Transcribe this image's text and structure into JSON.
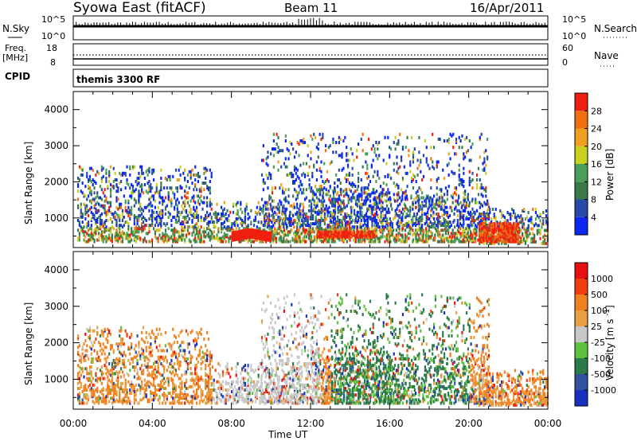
{
  "header": {
    "station": "Syowa East (fitACF)",
    "beam": "Beam 11",
    "date": "16/Apr/2011"
  },
  "top_panels": {
    "nsky_label": "N.Sky",
    "nsky_top": "10^5",
    "nsky_bottom": "10^0",
    "nsearch_label": "N.Search",
    "nsearch_top": "10^5",
    "nsearch_bottom": "10^0",
    "freq_label_1": "Freq.",
    "freq_label_2": "[MHz]",
    "freq_top": "18",
    "freq_bottom": "8",
    "nave_label": "Nave",
    "nave_top": "60",
    "nave_bottom": "0",
    "cpid_label": "CPID",
    "cpid_value": "themis 3300 RF"
  },
  "chart_data": [
    {
      "type": "heatmap",
      "name": "power",
      "ylabel": "Slant Range [km]",
      "ylim": [
        180,
        4500
      ],
      "yticks": [
        "1000",
        "2000",
        "3000",
        "4000"
      ],
      "xlim": [
        0,
        24
      ],
      "xticks": [
        "00:00",
        "04:00",
        "08:00",
        "12:00",
        "16:00",
        "20:00",
        "00:00"
      ],
      "colorbar": {
        "label": "Power [dB]",
        "ticks": [
          "4",
          "8",
          "12",
          "16",
          "20",
          "24",
          "28"
        ],
        "colors": [
          "#0a28f0",
          "#2a4aa8",
          "#3a7a4a",
          "#4aa05a",
          "#c8d020",
          "#f0a020",
          "#f07010",
          "#f02010"
        ]
      }
    },
    {
      "type": "heatmap",
      "name": "velocity",
      "ylabel": "Slant Range [km]",
      "ylim": [
        180,
        4500
      ],
      "yticks": [
        "1000",
        "2000",
        "3000",
        "4000"
      ],
      "xlim": [
        0,
        24
      ],
      "xticks": [
        "00:00",
        "04:00",
        "08:00",
        "12:00",
        "16:00",
        "20:00",
        "00:00"
      ],
      "xlabel": "Time UT",
      "colorbar": {
        "label": "Velocity [m s^-1]",
        "ticks": [
          "1000",
          "500",
          "100",
          "25",
          "-25",
          "-100",
          "-500",
          "-1000"
        ],
        "colors": [
          "#1830c0",
          "#3050a0",
          "#2a7a4a",
          "#60c040",
          "#c8c8c8",
          "#e8a040",
          "#f08020",
          "#f04010",
          "#e81010"
        ]
      }
    }
  ]
}
